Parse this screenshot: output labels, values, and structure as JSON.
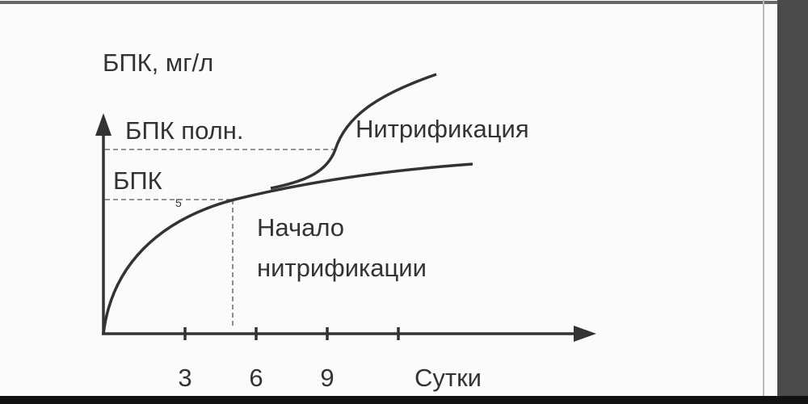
{
  "y_axis_label": "БПК, мг/л",
  "levels": {
    "full": "БПК полн.",
    "bod": "БПК",
    "bod_subscript": "5"
  },
  "annotations": {
    "nitrification": "Нитрификация",
    "onset": [
      "Начало",
      "нитрификации"
    ]
  },
  "x_axis": {
    "ticks": [
      3,
      6,
      9
    ],
    "label": "Сутки"
  }
}
